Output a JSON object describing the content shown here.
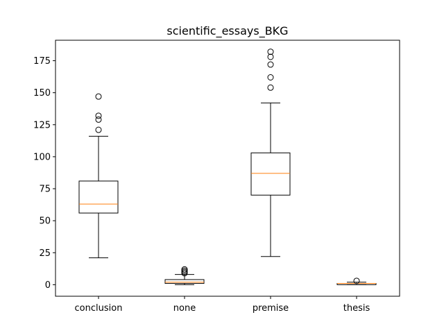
{
  "chart_data": {
    "type": "box",
    "title": "scientific_essays_BKG",
    "xlabel": "",
    "ylabel": "",
    "ylim": [
      -9,
      191
    ],
    "yticks": [
      0,
      25,
      50,
      75,
      100,
      125,
      150,
      175
    ],
    "categories": [
      "conclusion",
      "none",
      "premise",
      "thesis"
    ],
    "boxes": [
      {
        "name": "conclusion",
        "whisker_low": 21,
        "q1": 56,
        "median": 63,
        "q3": 81,
        "whisker_high": 116,
        "outliers": [
          121,
          129,
          132,
          147
        ]
      },
      {
        "name": "none",
        "whisker_low": 0,
        "q1": 1,
        "median": 2,
        "q3": 4,
        "whisker_high": 8,
        "outliers": [
          9,
          10,
          11,
          12
        ]
      },
      {
        "name": "premise",
        "whisker_low": 22,
        "q1": 70,
        "median": 87,
        "q3": 103,
        "whisker_high": 142,
        "outliers": [
          154,
          162,
          172,
          178,
          182
        ]
      },
      {
        "name": "thesis",
        "whisker_low": 0,
        "q1": 0,
        "median": 1,
        "q3": 1,
        "whisker_high": 2,
        "outliers": [
          3
        ]
      }
    ],
    "colors": {
      "box": "#000000",
      "median": "#ff7f0e",
      "outlier": "#000000"
    },
    "grid": false,
    "legend": "none"
  }
}
